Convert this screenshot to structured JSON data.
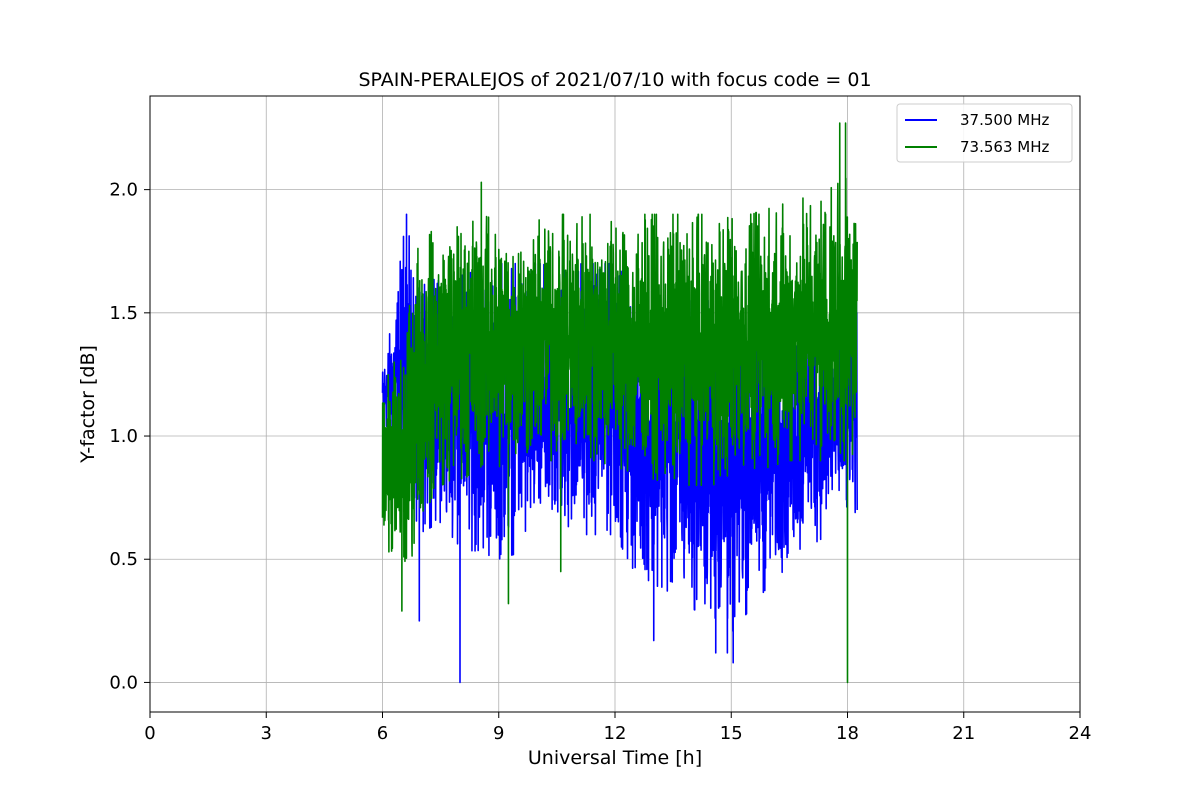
{
  "chart_data": {
    "type": "line",
    "title": "SPAIN-PERALEJOS of 2021/07/10 with focus code = 01",
    "xlabel": "Universal Time [h]",
    "ylabel": "Y-factor [dB]",
    "xlim": [
      0,
      24
    ],
    "ylim": [
      -0.12,
      2.38
    ],
    "xticks": [
      0,
      3,
      6,
      9,
      12,
      15,
      18,
      21,
      24
    ],
    "xtick_labels": [
      "0",
      "3",
      "6",
      "9",
      "12",
      "15",
      "18",
      "21",
      "24"
    ],
    "yticks": [
      0.0,
      0.5,
      1.0,
      1.5,
      2.0
    ],
    "ytick_labels": [
      "0.0",
      "0.5",
      "1.0",
      "1.5",
      "2.0"
    ],
    "grid": true,
    "legend_position": "top-right",
    "x_range_of_data": [
      6.0,
      18.25
    ],
    "series": [
      {
        "name": "37.500 MHz",
        "color": "#0000ff",
        "profile": [
          {
            "x": 6.0,
            "low": 1.05,
            "high": 1.28
          },
          {
            "x": 6.3,
            "low": 0.95,
            "high": 1.5
          },
          {
            "x": 6.6,
            "low": 0.75,
            "high": 1.9
          },
          {
            "x": 6.9,
            "low": 0.6,
            "high": 1.6
          },
          {
            "x": 7.5,
            "low": 0.65,
            "high": 1.65
          },
          {
            "x": 8.0,
            "low": 0.55,
            "high": 1.65
          },
          {
            "x": 9.0,
            "low": 0.5,
            "high": 1.7
          },
          {
            "x": 10.0,
            "low": 0.55,
            "high": 1.7
          },
          {
            "x": 11.0,
            "low": 0.6,
            "high": 1.7
          },
          {
            "x": 12.0,
            "low": 0.6,
            "high": 1.7
          },
          {
            "x": 12.5,
            "low": 0.45,
            "high": 1.6
          },
          {
            "x": 13.5,
            "low": 0.35,
            "high": 1.55
          },
          {
            "x": 14.5,
            "low": 0.25,
            "high": 1.55
          },
          {
            "x": 15.0,
            "low": 0.2,
            "high": 1.5
          },
          {
            "x": 16.0,
            "low": 0.4,
            "high": 1.5
          },
          {
            "x": 17.0,
            "low": 0.55,
            "high": 1.55
          },
          {
            "x": 18.0,
            "low": 0.65,
            "high": 1.6
          },
          {
            "x": 18.25,
            "low": 0.7,
            "high": 1.55
          }
        ],
        "extremes": [
          {
            "x": 6.62,
            "y": 1.9
          },
          {
            "x": 6.95,
            "y": 0.25
          },
          {
            "x": 8.0,
            "y": 0.0
          },
          {
            "x": 14.6,
            "y": 0.12
          },
          {
            "x": 14.9,
            "y": 0.12
          },
          {
            "x": 15.05,
            "y": 0.08
          },
          {
            "x": 13.0,
            "y": 0.17
          }
        ]
      },
      {
        "name": "73.563 MHz",
        "color": "#008000",
        "profile": [
          {
            "x": 6.0,
            "low": 0.6,
            "high": 1.2
          },
          {
            "x": 6.3,
            "low": 0.45,
            "high": 1.3
          },
          {
            "x": 6.6,
            "low": 0.35,
            "high": 1.4
          },
          {
            "x": 6.9,
            "low": 0.65,
            "high": 1.8
          },
          {
            "x": 7.5,
            "low": 0.8,
            "high": 1.85
          },
          {
            "x": 8.5,
            "low": 0.85,
            "high": 1.9
          },
          {
            "x": 9.5,
            "low": 0.9,
            "high": 1.85
          },
          {
            "x": 10.5,
            "low": 0.9,
            "high": 1.9
          },
          {
            "x": 11.5,
            "low": 0.9,
            "high": 1.9
          },
          {
            "x": 12.5,
            "low": 0.85,
            "high": 1.9
          },
          {
            "x": 13.5,
            "low": 0.8,
            "high": 1.9
          },
          {
            "x": 14.5,
            "low": 0.8,
            "high": 1.9
          },
          {
            "x": 15.5,
            "low": 0.85,
            "high": 1.9
          },
          {
            "x": 16.5,
            "low": 0.9,
            "high": 1.95
          },
          {
            "x": 17.5,
            "low": 0.9,
            "high": 2.0
          },
          {
            "x": 18.0,
            "low": 0.9,
            "high": 2.05
          },
          {
            "x": 18.25,
            "low": 0.95,
            "high": 1.95
          }
        ],
        "extremes": [
          {
            "x": 8.55,
            "y": 2.03
          },
          {
            "x": 17.8,
            "y": 2.27
          },
          {
            "x": 17.95,
            "y": 2.27
          },
          {
            "x": 18.0,
            "y": 0.0
          },
          {
            "x": 6.5,
            "y": 0.29
          },
          {
            "x": 10.6,
            "y": 0.45
          },
          {
            "x": 9.25,
            "y": 0.32
          }
        ]
      }
    ]
  }
}
